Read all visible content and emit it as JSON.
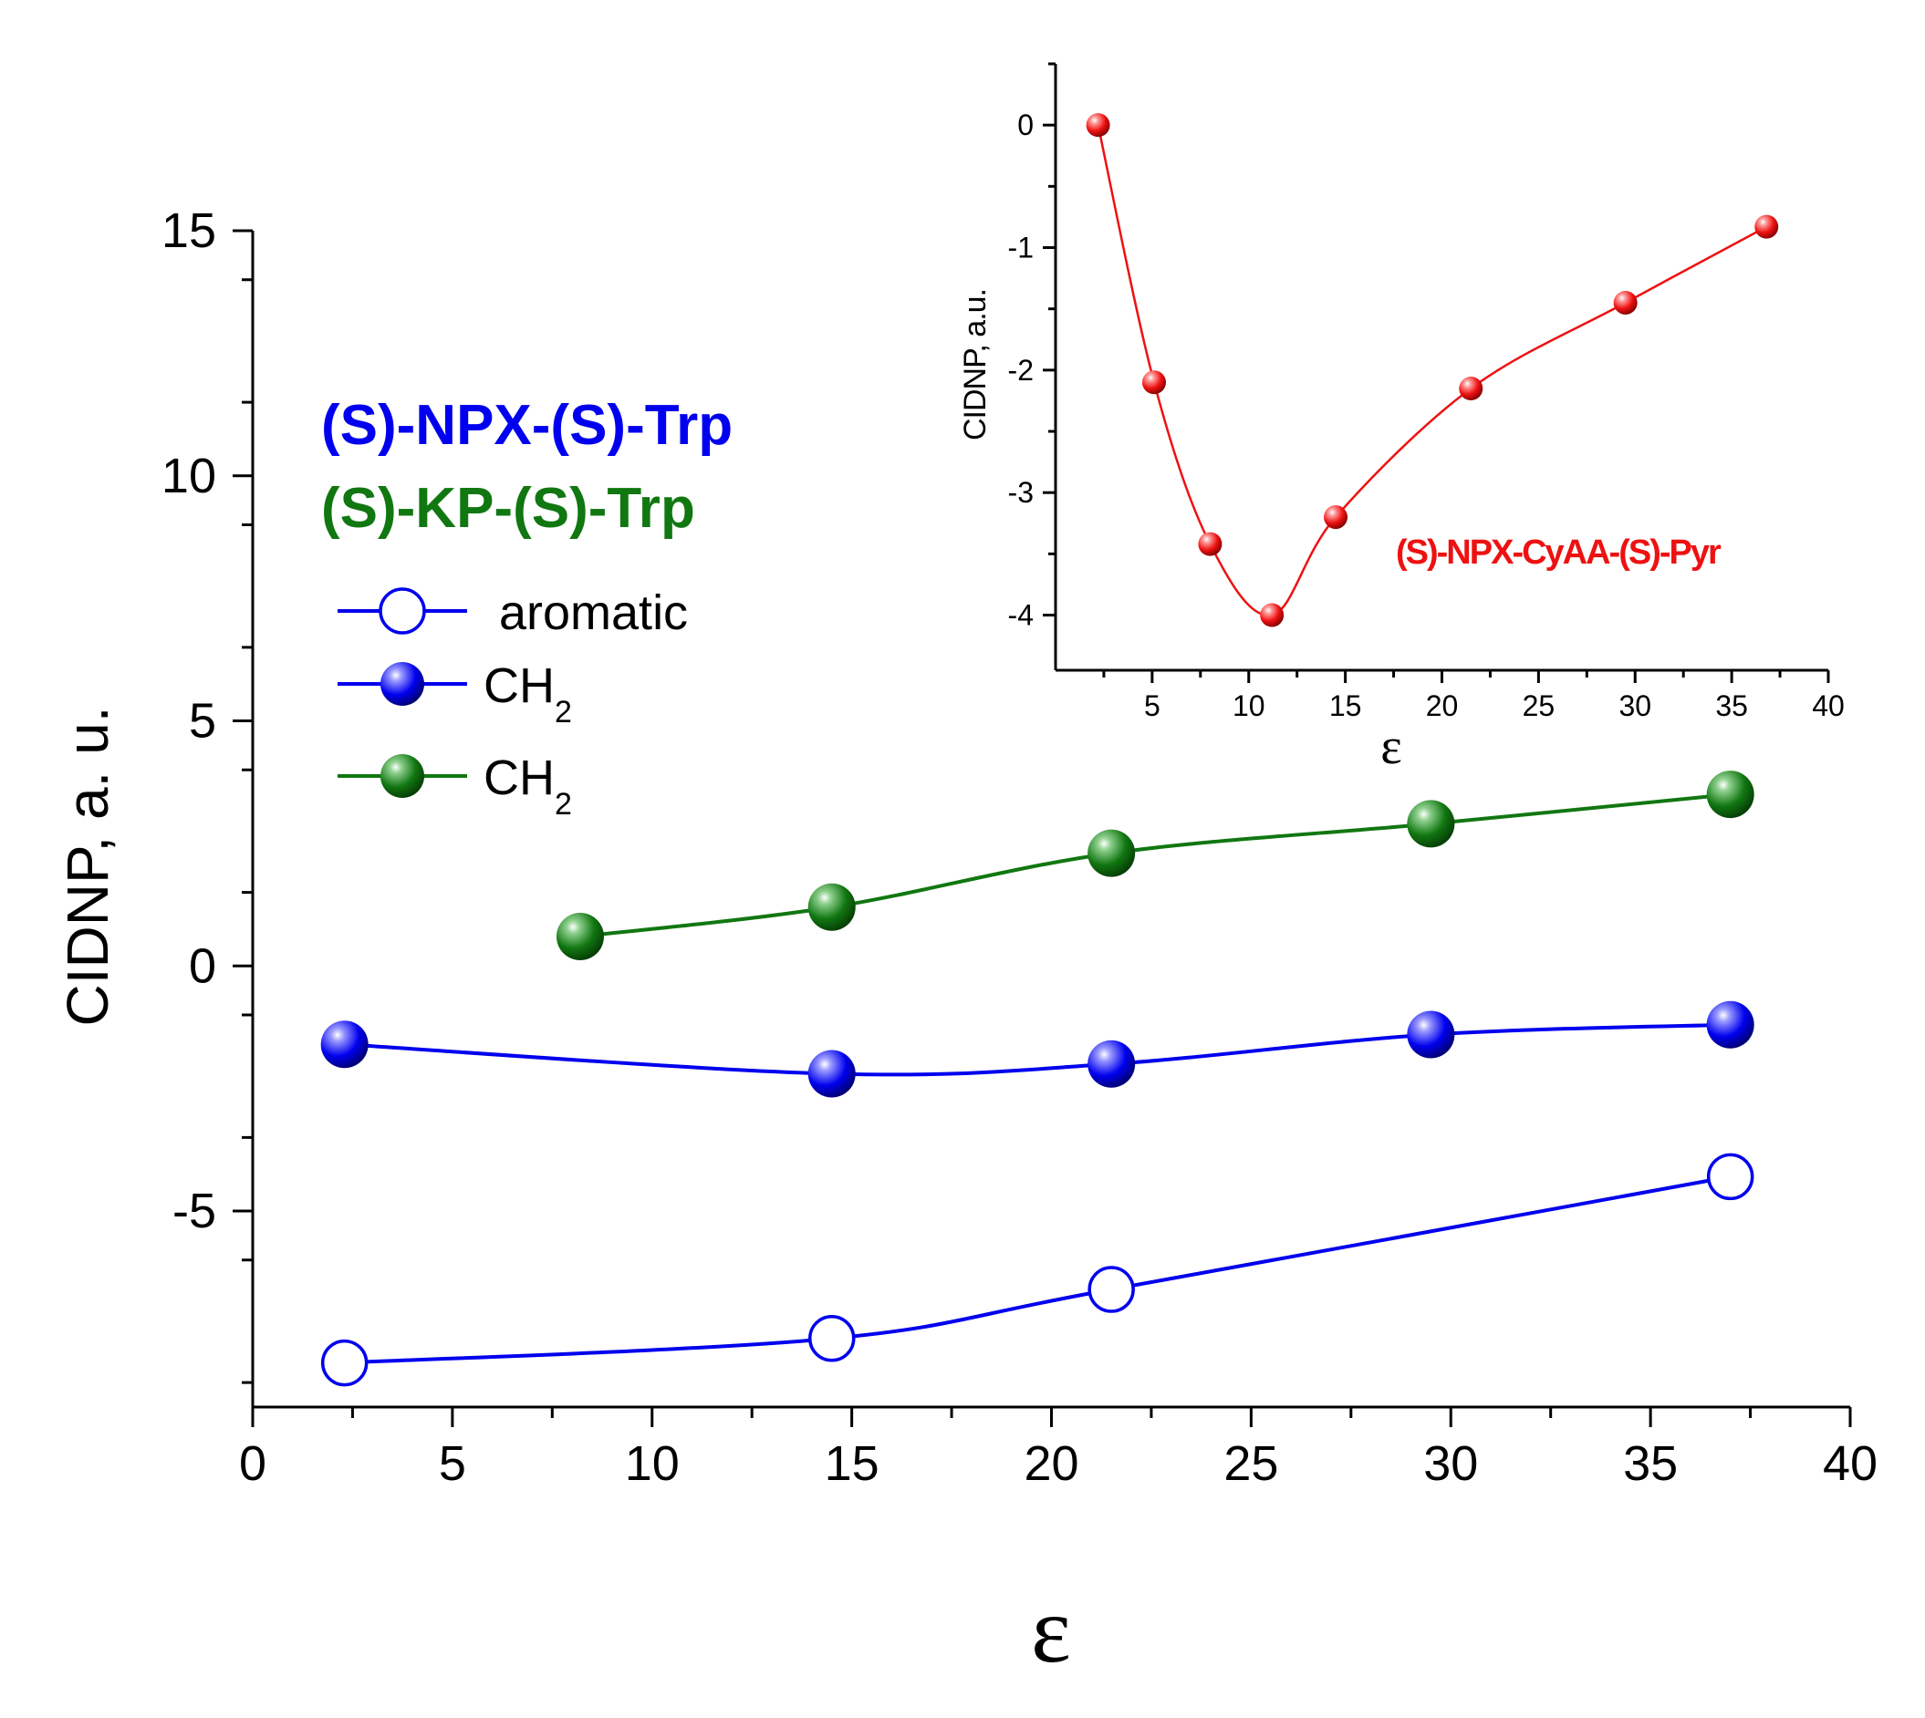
{
  "colors": {
    "blue": "#0000ee",
    "green": "#117711",
    "red": "#ee1111"
  },
  "chart_data": [
    {
      "type": "line",
      "id": "main",
      "xlabel": "ε",
      "ylabel": "CIDNP, a. u.",
      "xlim": [
        0,
        40
      ],
      "ylim": [
        -9,
        15
      ],
      "xticks": [
        0,
        5,
        10,
        15,
        20,
        25,
        30,
        35,
        40
      ],
      "yticks": [
        -5,
        0,
        5,
        10,
        15
      ],
      "xtick_labels": [
        "0",
        "5",
        "10",
        "15",
        "20",
        "25",
        "30",
        "35",
        "40"
      ],
      "ytick_labels": [
        "-5",
        "0",
        "5",
        "10",
        "15"
      ],
      "group_labels": [
        {
          "text": "(S)-NPX-(S)-Trp",
          "color": "#0000ee"
        },
        {
          "text": "(S)-KP-(S)-Trp",
          "color": "#117711"
        }
      ],
      "legend_position": "upper-left",
      "series": [
        {
          "name": "aromatic",
          "group": "(S)-NPX-(S)-Trp",
          "color": "#0000ee",
          "marker": "open-circle",
          "x": [
            2.3,
            14.5,
            21.5,
            37.0
          ],
          "y": [
            -8.1,
            -7.6,
            -6.6,
            -4.3
          ]
        },
        {
          "name": "CH2",
          "group": "(S)-NPX-(S)-Trp",
          "color": "#0000ee",
          "marker": "filled-sphere",
          "x": [
            2.3,
            14.5,
            21.5,
            29.5,
            37.0
          ],
          "y": [
            -1.6,
            -2.2,
            -2.0,
            -1.4,
            -1.2
          ]
        },
        {
          "name": "CH2",
          "group": "(S)-KP-(S)-Trp",
          "color": "#117711",
          "marker": "filled-sphere",
          "x": [
            8.2,
            14.5,
            21.5,
            29.5,
            37.0
          ],
          "y": [
            0.6,
            1.2,
            2.3,
            2.9,
            3.5
          ]
        }
      ],
      "legend_entries": [
        {
          "label": "aromatic",
          "sub": "",
          "color": "#0000ee",
          "marker": "open-circle"
        },
        {
          "label": "CH",
          "sub": "2",
          "color": "#0000ee",
          "marker": "filled-sphere"
        },
        {
          "label": "CH",
          "sub": "2",
          "color": "#117711",
          "marker": "filled-sphere"
        }
      ]
    },
    {
      "type": "line",
      "id": "inset",
      "xlabel": "ε",
      "ylabel": "CIDNP, a.u.",
      "xlim": [
        0,
        40
      ],
      "ylim": [
        -4.45,
        0.5
      ],
      "xticks": [
        5,
        10,
        15,
        20,
        25,
        30,
        35,
        40
      ],
      "yticks": [
        0,
        -1,
        -2,
        -3,
        -4
      ],
      "xtick_labels": [
        "5",
        "10",
        "15",
        "20",
        "25",
        "30",
        "35",
        "40"
      ],
      "ytick_labels": [
        "0",
        "-1",
        "-2",
        "-3",
        "-4"
      ],
      "annotation": "(S)-NPX-CyAA-(S)-Pyr",
      "series": [
        {
          "name": "(S)-NPX-CyAA-(S)-Pyr",
          "color": "#ee1111",
          "marker": "filled-sphere",
          "x": [
            2.2,
            5.1,
            8.0,
            11.2,
            14.5,
            21.5,
            29.5,
            36.8
          ],
          "y": [
            0.0,
            -2.1,
            -3.42,
            -4.0,
            -3.2,
            -2.15,
            -1.45,
            -0.83
          ]
        }
      ]
    }
  ]
}
